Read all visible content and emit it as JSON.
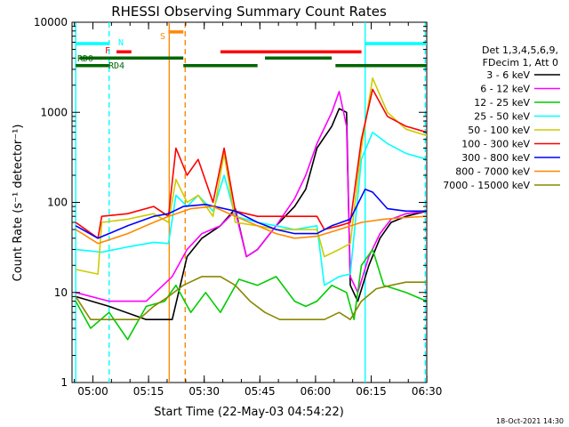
{
  "chart_data": {
    "type": "line",
    "title": "RHESSI Observing Summary Count Rates",
    "xlabel": "Start Time (22-May-03 04:54:22)",
    "ylabel": "Count Rate (s⁻¹ detector⁻¹)",
    "ylog": true,
    "ylim": [
      1,
      10000
    ],
    "xlim_minutes": [
      0,
      95.6
    ],
    "x_ticks": [
      "05:00",
      "05:15",
      "05:30",
      "05:45",
      "06:00",
      "06:15",
      "06:30"
    ],
    "y_ticks": [
      "1",
      "10",
      "100",
      "1000",
      "10000"
    ],
    "date_stamp": "18-Oct-2021 14:30",
    "legend_header": [
      "Det 1,3,4,5,6,9,",
      "FDecim 1, Att 0"
    ],
    "legend_position": "right",
    "series": [
      {
        "name": "3 - 6 keV",
        "color": "#000000",
        "points": [
          [
            1,
            9
          ],
          [
            10,
            7
          ],
          [
            20,
            5
          ],
          [
            27,
            5
          ],
          [
            31,
            25
          ],
          [
            35,
            40
          ],
          [
            40,
            55
          ],
          [
            44,
            85
          ],
          [
            47,
            25
          ],
          [
            50,
            30
          ],
          [
            55,
            55
          ],
          [
            60,
            90
          ],
          [
            63,
            140
          ],
          [
            66,
            400
          ],
          [
            70,
            700
          ],
          [
            72,
            1100
          ],
          [
            74,
            1000
          ],
          [
            75,
            12
          ],
          [
            77,
            8
          ],
          [
            80,
            20
          ],
          [
            83,
            40
          ],
          [
            86,
            60
          ],
          [
            90,
            70
          ],
          [
            95.6,
            80
          ]
        ]
      },
      {
        "name": "6 - 12 keV",
        "color": "#ff00ff",
        "points": [
          [
            1,
            10
          ],
          [
            10,
            8
          ],
          [
            20,
            8
          ],
          [
            27,
            15
          ],
          [
            31,
            30
          ],
          [
            35,
            45
          ],
          [
            40,
            55
          ],
          [
            44,
            80
          ],
          [
            47,
            25
          ],
          [
            50,
            30
          ],
          [
            55,
            55
          ],
          [
            60,
            110
          ],
          [
            63,
            200
          ],
          [
            66,
            450
          ],
          [
            70,
            1000
          ],
          [
            72,
            1700
          ],
          [
            74,
            700
          ],
          [
            75,
            15
          ],
          [
            77,
            10
          ],
          [
            80,
            25
          ],
          [
            83,
            45
          ],
          [
            86,
            65
          ],
          [
            90,
            75
          ],
          [
            95.6,
            80
          ]
        ]
      },
      {
        "name": "12 - 25 keV",
        "color": "#00cc00",
        "points": [
          [
            1,
            8
          ],
          [
            5,
            4
          ],
          [
            10,
            6
          ],
          [
            15,
            3
          ],
          [
            20,
            7
          ],
          [
            25,
            8
          ],
          [
            28,
            12
          ],
          [
            32,
            6
          ],
          [
            36,
            10
          ],
          [
            40,
            6
          ],
          [
            45,
            14
          ],
          [
            50,
            12
          ],
          [
            55,
            15
          ],
          [
            60,
            8
          ],
          [
            63,
            7
          ],
          [
            66,
            8
          ],
          [
            70,
            12
          ],
          [
            74,
            10
          ],
          [
            76,
            5
          ],
          [
            78,
            20
          ],
          [
            81,
            30
          ],
          [
            84,
            12
          ],
          [
            90,
            10
          ],
          [
            95.6,
            8
          ]
        ]
      },
      {
        "name": "25 - 50 keV",
        "color": "#00ffff",
        "points": [
          [
            1,
            30
          ],
          [
            8,
            28
          ],
          [
            15,
            32
          ],
          [
            22,
            36
          ],
          [
            26,
            35
          ],
          [
            28,
            120
          ],
          [
            31,
            90
          ],
          [
            34,
            120
          ],
          [
            38,
            80
          ],
          [
            41,
            200
          ],
          [
            44,
            70
          ],
          [
            50,
            60
          ],
          [
            55,
            55
          ],
          [
            60,
            50
          ],
          [
            66,
            55
          ],
          [
            68,
            12
          ],
          [
            72,
            15
          ],
          [
            75,
            16
          ],
          [
            78,
            300
          ],
          [
            81,
            600
          ],
          [
            85,
            450
          ],
          [
            90,
            350
          ],
          [
            95.6,
            300
          ]
        ]
      },
      {
        "name": "50 - 100 keV",
        "color": "#cccc00",
        "points": [
          [
            1,
            18
          ],
          [
            7,
            16
          ],
          [
            8,
            60
          ],
          [
            15,
            65
          ],
          [
            22,
            75
          ],
          [
            26,
            60
          ],
          [
            28,
            180
          ],
          [
            31,
            100
          ],
          [
            34,
            120
          ],
          [
            38,
            70
          ],
          [
            41,
            350
          ],
          [
            44,
            60
          ],
          [
            50,
            55
          ],
          [
            55,
            50
          ],
          [
            60,
            50
          ],
          [
            66,
            50
          ],
          [
            68,
            25
          ],
          [
            72,
            30
          ],
          [
            75,
            35
          ],
          [
            78,
            400
          ],
          [
            81,
            2400
          ],
          [
            85,
            1000
          ],
          [
            90,
            650
          ],
          [
            95.6,
            550
          ]
        ]
      },
      {
        "name": "100 - 300 keV",
        "color": "#ff0000",
        "points": [
          [
            1,
            60
          ],
          [
            7,
            40
          ],
          [
            8,
            70
          ],
          [
            15,
            75
          ],
          [
            22,
            90
          ],
          [
            26,
            70
          ],
          [
            28,
            400
          ],
          [
            31,
            200
          ],
          [
            34,
            300
          ],
          [
            38,
            100
          ],
          [
            41,
            400
          ],
          [
            44,
            80
          ],
          [
            50,
            70
          ],
          [
            55,
            70
          ],
          [
            60,
            70
          ],
          [
            66,
            70
          ],
          [
            68,
            50
          ],
          [
            72,
            55
          ],
          [
            75,
            60
          ],
          [
            78,
            500
          ],
          [
            81,
            1800
          ],
          [
            85,
            900
          ],
          [
            90,
            700
          ],
          [
            95.6,
            600
          ]
        ]
      },
      {
        "name": "300 - 800 keV",
        "color": "#0000ff",
        "points": [
          [
            1,
            55
          ],
          [
            7,
            40
          ],
          [
            15,
            55
          ],
          [
            22,
            70
          ],
          [
            26,
            75
          ],
          [
            30,
            90
          ],
          [
            36,
            95
          ],
          [
            44,
            80
          ],
          [
            50,
            60
          ],
          [
            55,
            50
          ],
          [
            60,
            45
          ],
          [
            66,
            45
          ],
          [
            70,
            55
          ],
          [
            75,
            65
          ],
          [
            79,
            140
          ],
          [
            81,
            130
          ],
          [
            85,
            85
          ],
          [
            90,
            80
          ],
          [
            95.6,
            80
          ]
        ]
      },
      {
        "name": "800 - 7000 keV",
        "color": "#ff8800",
        "points": [
          [
            1,
            50
          ],
          [
            7,
            35
          ],
          [
            15,
            45
          ],
          [
            22,
            60
          ],
          [
            26,
            70
          ],
          [
            32,
            85
          ],
          [
            38,
            90
          ],
          [
            44,
            70
          ],
          [
            50,
            55
          ],
          [
            55,
            45
          ],
          [
            60,
            40
          ],
          [
            66,
            42
          ],
          [
            72,
            50
          ],
          [
            78,
            60
          ],
          [
            84,
            65
          ],
          [
            90,
            68
          ],
          [
            95.6,
            70
          ]
        ]
      },
      {
        "name": "7000 - 15000 keV",
        "color": "#888800",
        "points": [
          [
            1,
            9
          ],
          [
            5,
            5
          ],
          [
            12,
            5
          ],
          [
            18,
            5
          ],
          [
            22,
            7
          ],
          [
            26,
            9
          ],
          [
            30,
            12
          ],
          [
            35,
            15
          ],
          [
            40,
            15
          ],
          [
            44,
            12
          ],
          [
            48,
            8
          ],
          [
            52,
            6
          ],
          [
            56,
            5
          ],
          [
            60,
            5
          ],
          [
            64,
            5
          ],
          [
            68,
            5
          ],
          [
            72,
            6
          ],
          [
            75,
            5
          ],
          [
            78,
            8
          ],
          [
            82,
            11
          ],
          [
            86,
            12
          ],
          [
            90,
            13
          ],
          [
            95.6,
            13
          ]
        ]
      }
    ],
    "status_bars": [
      {
        "label": "N",
        "color": "#00ffff",
        "y": 5800,
        "segments": [
          [
            1,
            10
          ]
        ]
      },
      {
        "label": "",
        "color": "#00ffff",
        "y": 5800,
        "segments": [
          [
            79,
            95.6
          ]
        ]
      },
      {
        "label": "F",
        "color": "#ff0000",
        "y": 4700,
        "segments": [
          [
            12,
            16
          ],
          [
            40,
            78
          ]
        ]
      },
      {
        "label": "S",
        "color": "#ff8800",
        "y": 7800,
        "segments": [
          [
            26,
            30
          ]
        ]
      },
      {
        "label": "RD0",
        "color": "#006600",
        "y": 4000,
        "segments": [
          [
            2,
            30
          ],
          [
            52,
            70
          ]
        ]
      },
      {
        "label": "RD4",
        "color": "#006600",
        "y": 3300,
        "segments": [
          [
            1,
            10
          ],
          [
            30,
            50
          ],
          [
            71,
            95.6
          ]
        ]
      }
    ],
    "vertical_markers": [
      {
        "color": "#00ffff",
        "x": 10,
        "dashed": true
      },
      {
        "color": "#00ffff",
        "x": 1,
        "dashed": false
      },
      {
        "color": "#00ffff",
        "x": 79,
        "dashed": false
      },
      {
        "color": "#00ffff",
        "x": 95.2,
        "dashed": true
      },
      {
        "color": "#ff8800",
        "x": 26.2,
        "dashed": false
      },
      {
        "color": "#ff8800",
        "x": 30.5,
        "dashed": true
      }
    ],
    "status_labels": {
      "N": "N",
      "F": "F",
      "S": "S",
      "RD0": "RD0",
      "RD4": "RD4"
    }
  }
}
